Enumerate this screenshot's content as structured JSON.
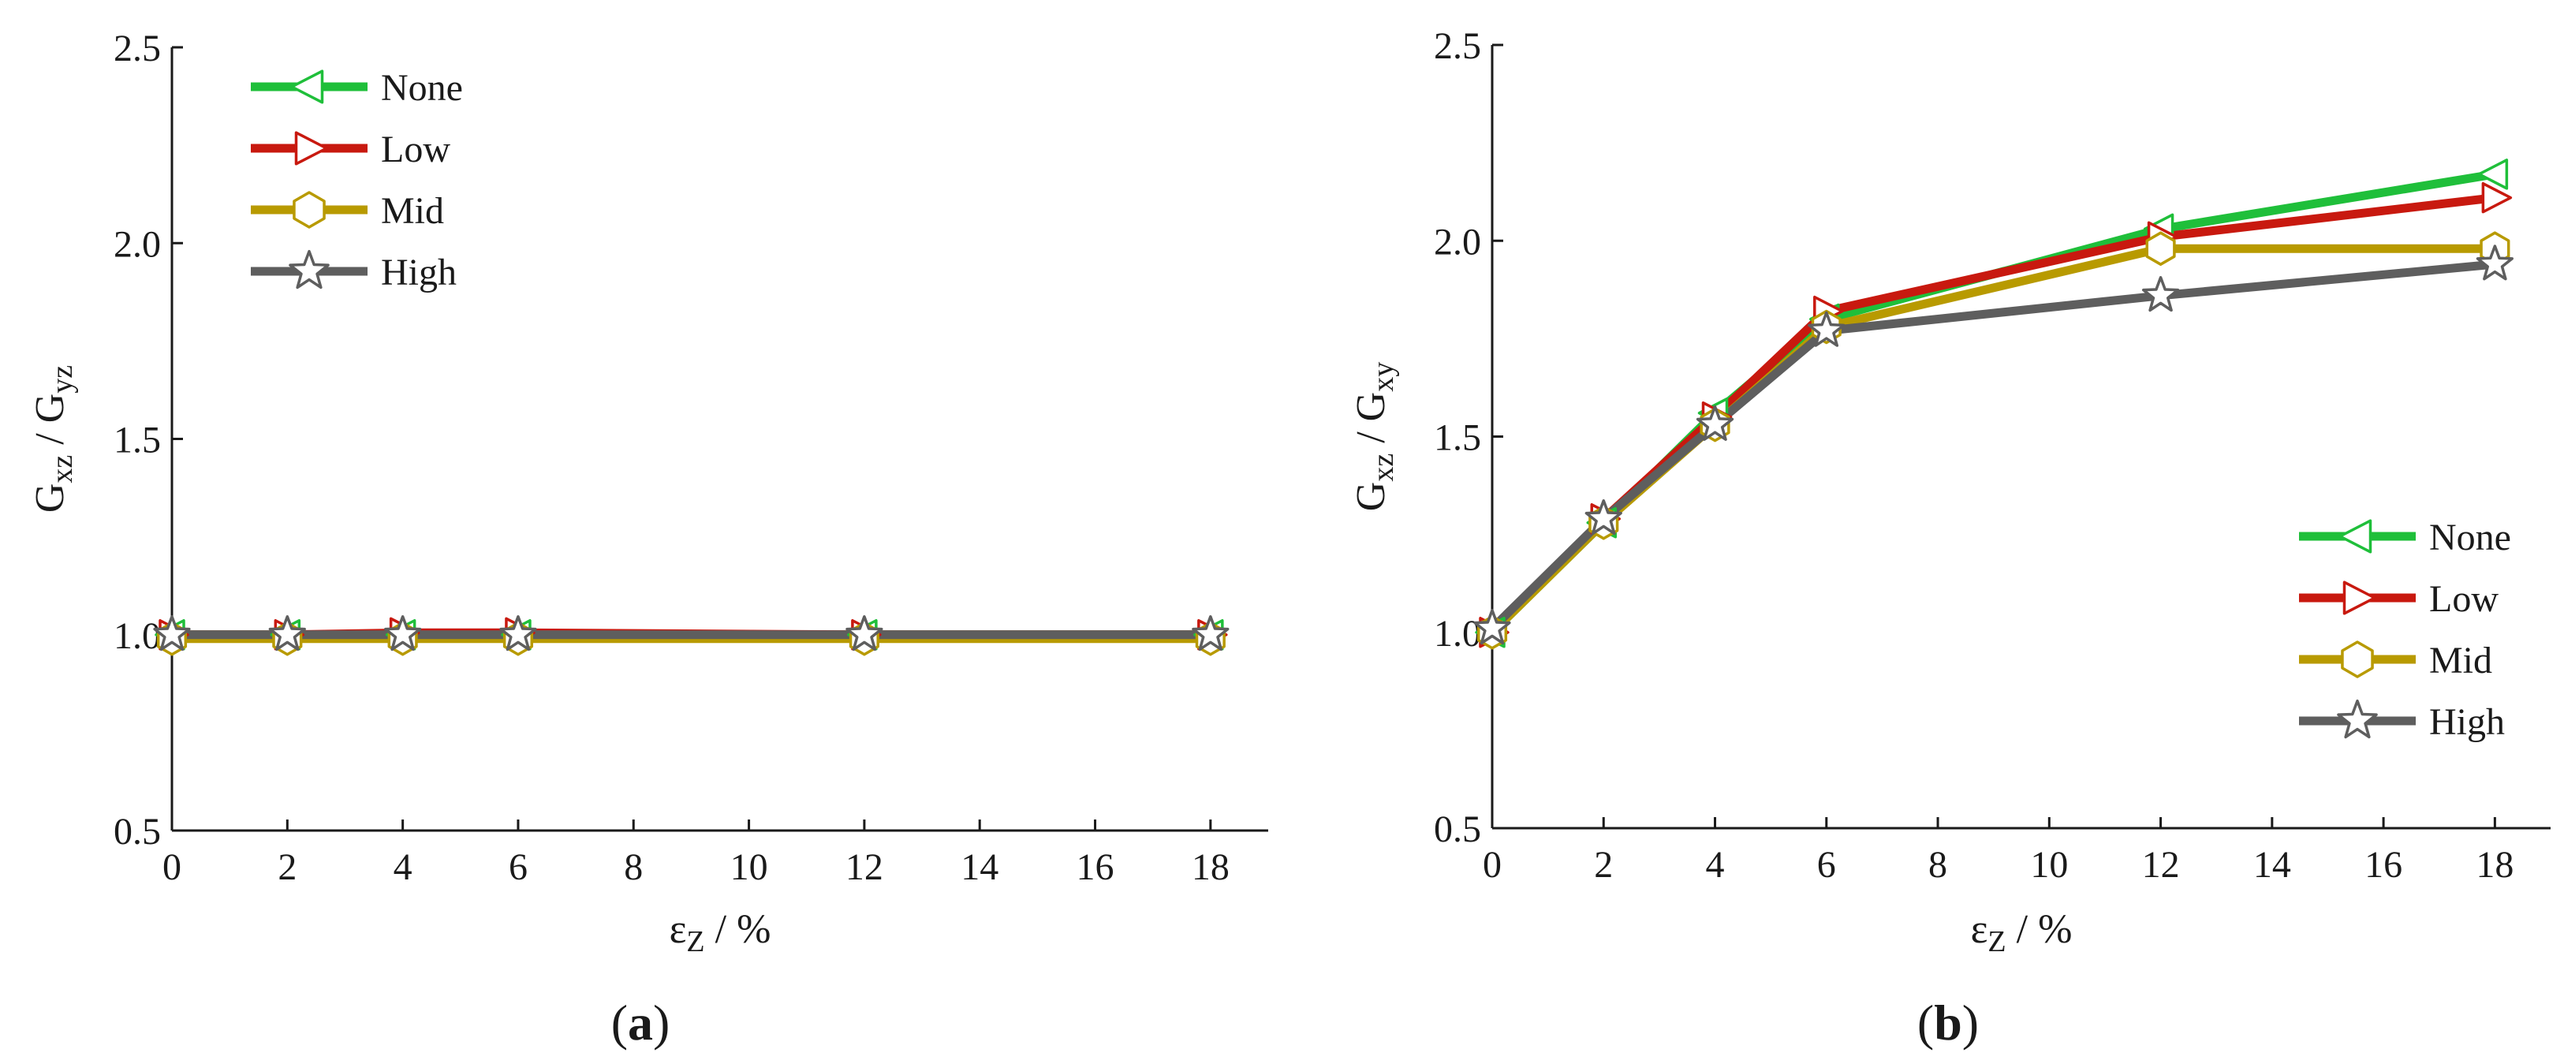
{
  "colors": {
    "none": "#1fbf3a",
    "low": "#c8190f",
    "mid": "#b89a00",
    "high": "#5e5e5e",
    "axis": "#1a1a1a"
  },
  "marker_icons": {
    "none": "triangle-left-icon",
    "low": "triangle-right-icon",
    "mid": "hexagon-icon",
    "high": "star-icon"
  },
  "chart_data": [
    {
      "type": "line",
      "panel_label": "(a)",
      "ylabel": "Gxz / Gyz",
      "xlabel": "εZ / %",
      "xlim": [
        0,
        19
      ],
      "ylim": [
        0.5,
        2.5
      ],
      "x_ticks": [
        0,
        2,
        4,
        6,
        8,
        10,
        12,
        14,
        16,
        18
      ],
      "y_ticks": [
        0.5,
        1.0,
        1.5,
        2.0,
        2.5
      ],
      "legend_position": "top-left",
      "x": [
        0,
        2,
        4,
        6,
        12,
        18
      ],
      "series": [
        {
          "name": "None",
          "values": [
            1.0,
            1.0,
            1.0,
            1.0,
            1.0,
            1.0
          ],
          "marker": "triangle-left"
        },
        {
          "name": "Low",
          "values": [
            1.0,
            1.0,
            1.005,
            1.005,
            1.0,
            1.0
          ],
          "marker": "triangle-right"
        },
        {
          "name": "Mid",
          "values": [
            0.99,
            0.99,
            0.99,
            0.99,
            0.99,
            0.99
          ],
          "marker": "hexagon"
        },
        {
          "name": "High",
          "values": [
            1.0,
            1.0,
            1.0,
            1.0,
            1.0,
            1.0
          ],
          "marker": "star"
        }
      ]
    },
    {
      "type": "line",
      "panel_label": "(b)",
      "ylabel": "Gxz / Gxy",
      "xlabel": "εZ / %",
      "xlim": [
        0,
        19
      ],
      "ylim": [
        0.5,
        2.5
      ],
      "x_ticks": [
        0,
        2,
        4,
        6,
        8,
        10,
        12,
        14,
        16,
        18
      ],
      "y_ticks": [
        0.5,
        1.0,
        1.5,
        2.0,
        2.5
      ],
      "legend_position": "bottom-right",
      "x": [
        0,
        2,
        4,
        6,
        12,
        18
      ],
      "series": [
        {
          "name": "None",
          "values": [
            1.0,
            1.28,
            1.56,
            1.8,
            2.03,
            2.17
          ],
          "marker": "triangle-left"
        },
        {
          "name": "Low",
          "values": [
            1.0,
            1.29,
            1.55,
            1.82,
            2.01,
            2.11
          ],
          "marker": "triangle-right"
        },
        {
          "name": "Mid",
          "values": [
            1.0,
            1.28,
            1.53,
            1.78,
            1.98,
            1.98
          ],
          "marker": "hexagon"
        },
        {
          "name": "High",
          "values": [
            1.01,
            1.29,
            1.53,
            1.77,
            1.86,
            1.94
          ],
          "marker": "star"
        }
      ]
    }
  ]
}
